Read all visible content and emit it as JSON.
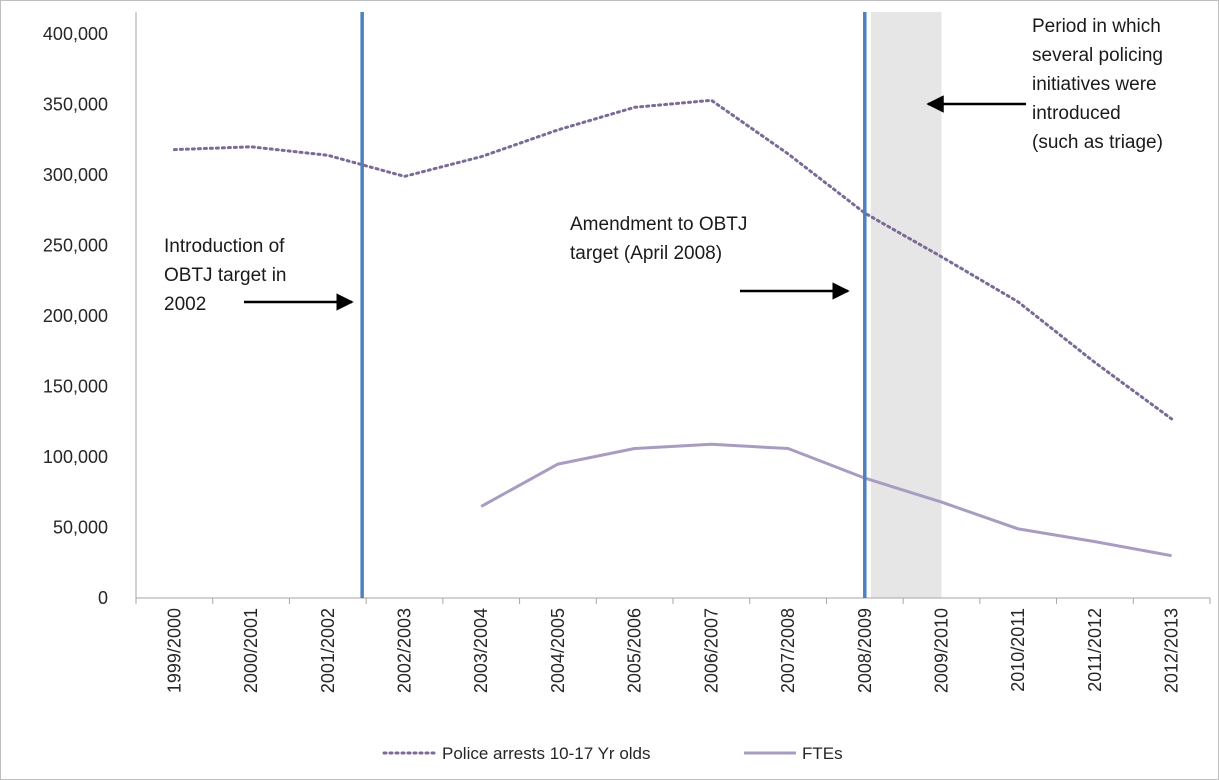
{
  "chart_data": {
    "type": "line",
    "categories": [
      "1999/2000",
      "2000/2001",
      "2001/2002",
      "2002/2003",
      "2003/2004",
      "2004/2005",
      "2005/2006",
      "2006/2007",
      "2007/2008",
      "2008/2009",
      "2009/2010",
      "2010/2011",
      "2011/2012",
      "2012/2013"
    ],
    "series": [
      {
        "name": "Police arrests 10-17 Yr olds",
        "style": "dotted",
        "color": "#7b6a96",
        "values": [
          318000,
          320000,
          314000,
          299000,
          313000,
          332000,
          348000,
          353000,
          315000,
          273000,
          242000,
          210000,
          167000,
          127000
        ]
      },
      {
        "name": "FTEs",
        "style": "solid",
        "color": "#a99cc2",
        "values": [
          null,
          null,
          null,
          null,
          65000,
          95000,
          106000,
          109000,
          106000,
          85000,
          68000,
          49000,
          40000,
          30000
        ]
      }
    ],
    "ylim": [
      0,
      400000
    ],
    "yticks": [
      "0",
      "50,000",
      "100,000",
      "150,000",
      "200,000",
      "250,000",
      "300,000",
      "350,000",
      "400,000"
    ],
    "grid": false,
    "legend_position": "bottom",
    "vertical_markers": [
      {
        "after_category": "2001/2002",
        "color": "#4f81bd"
      },
      {
        "at_category": "2008/2009",
        "color": "#4f81bd"
      }
    ],
    "shaded_band": {
      "from_category": "2008/2009",
      "to_category": "2009/2010",
      "color": "#e6e6e6"
    },
    "annotations": [
      {
        "name": "obtj-intro",
        "lines": [
          "Introduction of",
          "OBTJ target in",
          "2002"
        ]
      },
      {
        "name": "obtj-amend",
        "lines": [
          "Amendment to OBTJ",
          "target (April 2008)"
        ]
      },
      {
        "name": "policing-period",
        "lines": [
          "Period in which",
          "several policing",
          "initiatives were",
          "introduced",
          "(such as triage)"
        ]
      }
    ]
  }
}
